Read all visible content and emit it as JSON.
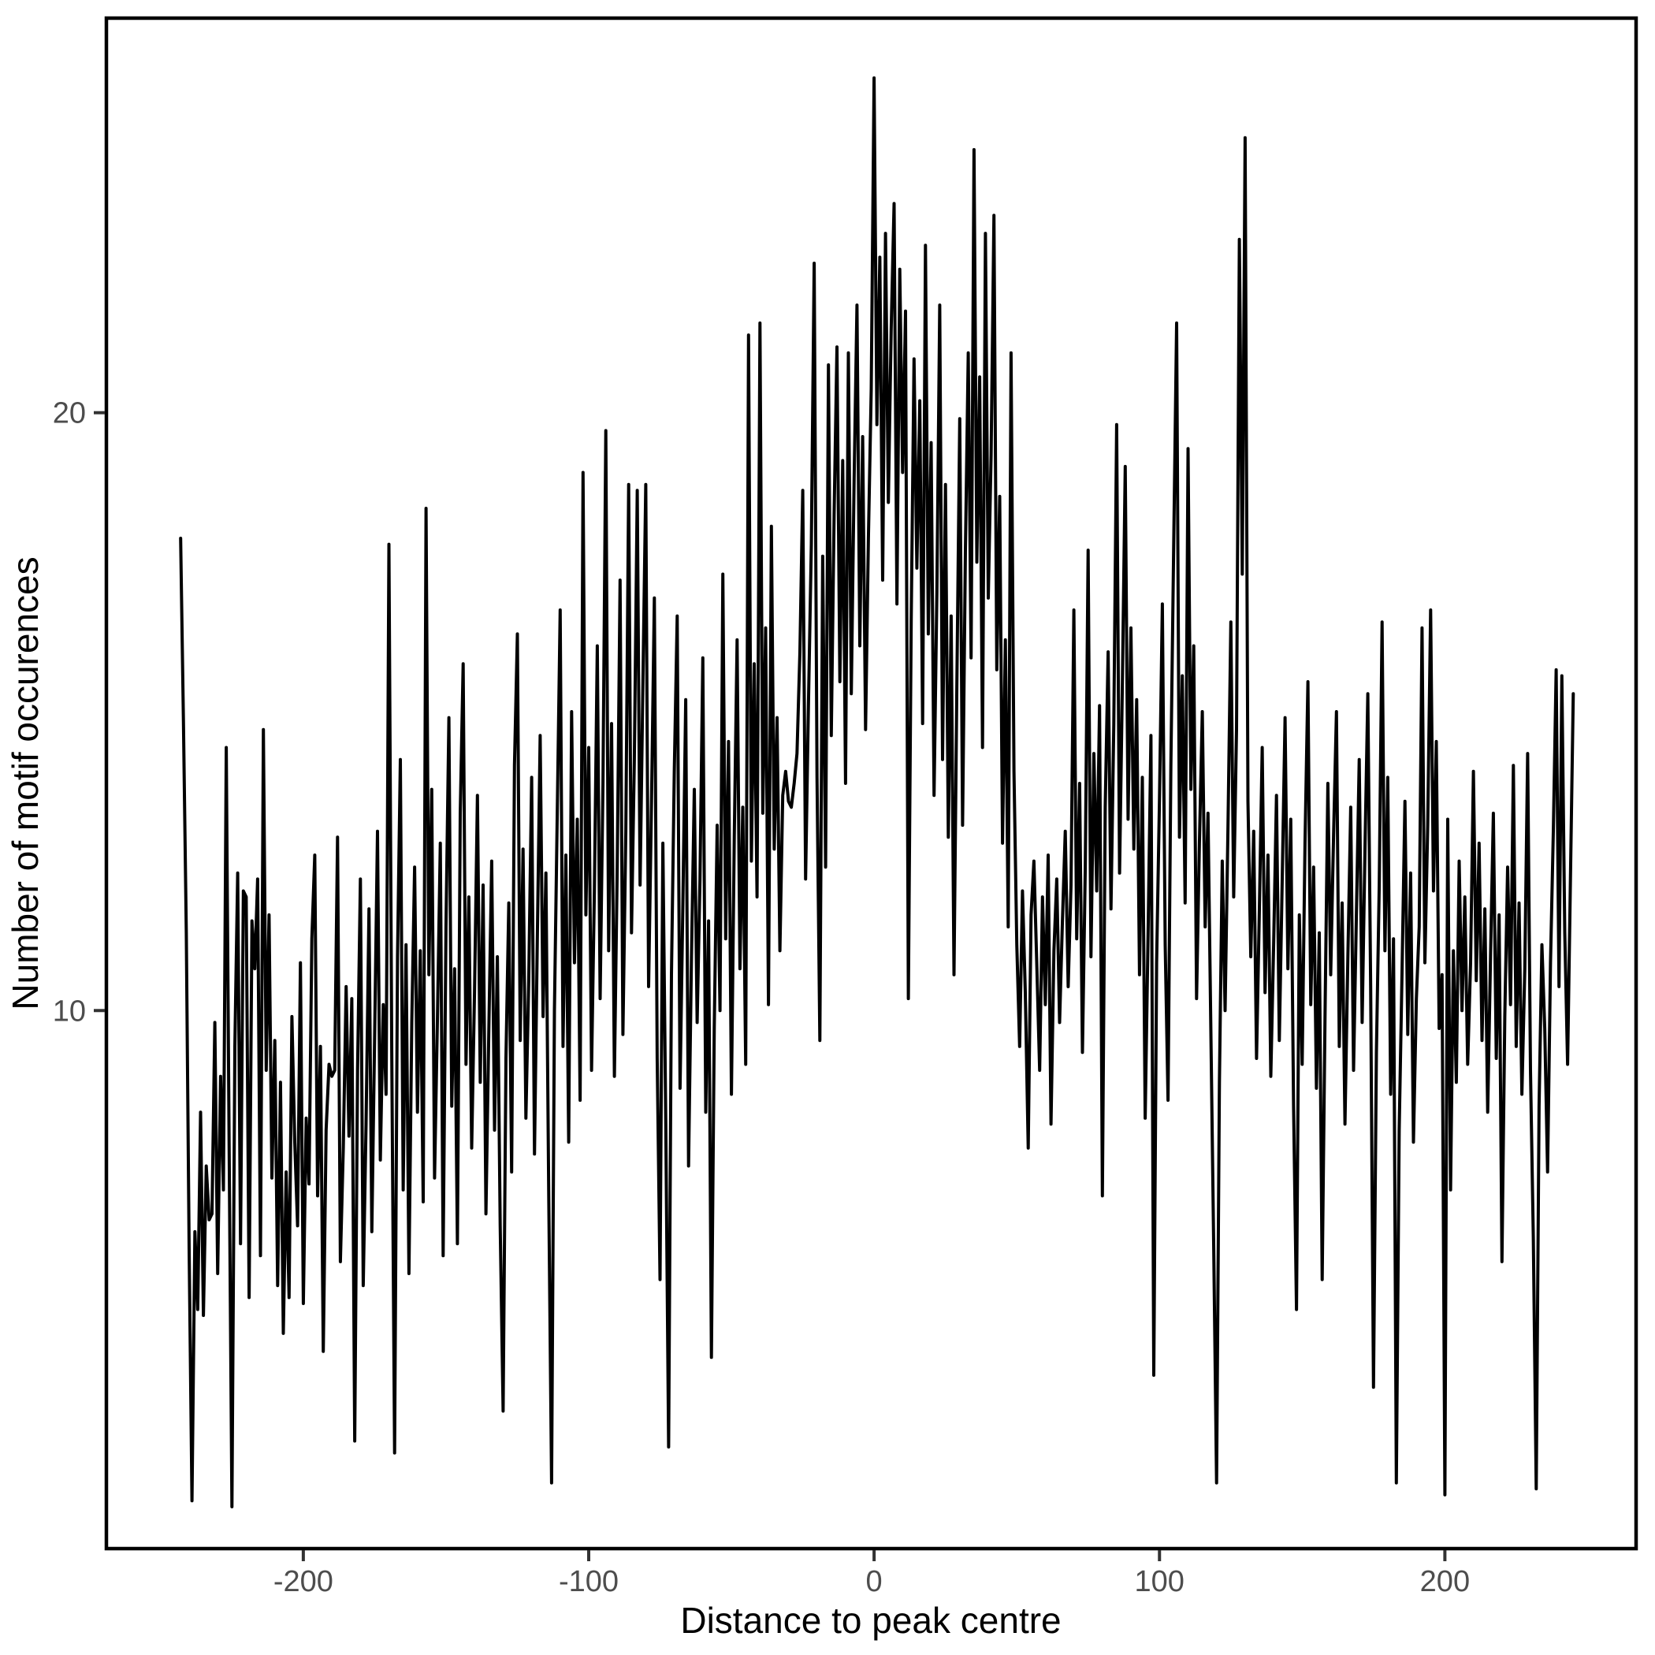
{
  "chart_data": {
    "type": "line",
    "title": "",
    "xlabel": "Distance to peak centre",
    "ylabel": "Number of motif occurences",
    "legend": "none",
    "grid": "off",
    "line_color": "#000000",
    "panel_border_color": "#000000",
    "tick_label_color": "#4d4d4d",
    "axis_title_color": "#000000",
    "background_color": "#ffffff",
    "xlim": [
      -269,
      267
    ],
    "ylim": [
      1.0,
      26.6
    ],
    "x_ticks": [
      -200,
      -100,
      0,
      100,
      200
    ],
    "y_ticks": [
      10,
      20
    ],
    "x_start": -243,
    "x_step": 1,
    "values": [
      17.9,
      14.8,
      11.3,
      6.0,
      1.8,
      6.3,
      5.0,
      8.3,
      4.9,
      7.4,
      6.5,
      6.6,
      9.8,
      5.6,
      8.9,
      7.0,
      14.4,
      7.8,
      1.7,
      9.4,
      12.3,
      6.1,
      12.0,
      11.9,
      5.2,
      11.5,
      10.7,
      12.2,
      5.9,
      14.7,
      9.0,
      11.6,
      7.2,
      9.5,
      5.4,
      8.8,
      4.6,
      7.3,
      5.2,
      9.9,
      7.8,
      6.4,
      10.8,
      5.1,
      8.2,
      7.1,
      11.2,
      12.6,
      6.9,
      9.4,
      4.3,
      8.0,
      9.1,
      8.9,
      9.0,
      12.9,
      5.8,
      7.7,
      10.4,
      7.9,
      10.2,
      2.8,
      9.0,
      12.2,
      5.4,
      8.1,
      11.7,
      6.3,
      9.6,
      13.0,
      7.5,
      10.1,
      8.6,
      17.8,
      9.3,
      2.6,
      10.9,
      14.2,
      7.0,
      11.1,
      5.6,
      9.8,
      12.4,
      8.3,
      11.0,
      6.8,
      18.4,
      10.6,
      13.7,
      7.2,
      9.9,
      12.8,
      5.9,
      11.4,
      14.9,
      8.4,
      10.7,
      6.1,
      13.3,
      15.8,
      9.1,
      11.9,
      7.7,
      10.3,
      13.6,
      8.8,
      12.1,
      6.6,
      9.7,
      12.5,
      8.0,
      10.9,
      6.4,
      3.3,
      9.2,
      11.8,
      7.3,
      14.1,
      16.3,
      9.5,
      12.7,
      8.2,
      10.5,
      13.9,
      7.6,
      11.2,
      14.6,
      9.9,
      12.3,
      6.9,
      2.1,
      10.0,
      13.4,
      16.7,
      9.4,
      12.6,
      7.8,
      15.0,
      10.8,
      13.2,
      8.5,
      19.0,
      11.6,
      14.4,
      9.0,
      12.0,
      16.1,
      10.2,
      13.8,
      19.7,
      11.0,
      14.8,
      8.9,
      12.4,
      17.2,
      9.6,
      13.0,
      18.8,
      11.3,
      14.2,
      18.7,
      12.1,
      15.5,
      18.8,
      10.4,
      13.5,
      16.9,
      9.2,
      5.5,
      12.8,
      8.1,
      2.7,
      10.6,
      14.0,
      16.6,
      8.7,
      11.8,
      15.2,
      7.4,
      10.9,
      13.7,
      9.8,
      12.2,
      15.9,
      8.3,
      11.5,
      4.2,
      9.7,
      13.1,
      10.0,
      17.3,
      11.2,
      14.5,
      8.6,
      12.9,
      16.2,
      10.7,
      13.4,
      9.1,
      21.3,
      12.5,
      15.8,
      11.9,
      21.5,
      13.3,
      16.4,
      10.1,
      18.1,
      12.7,
      14.9,
      11.0,
      13.6,
      14.0,
      13.5,
      13.4,
      13.8,
      14.3,
      16.0,
      18.7,
      12.2,
      15.1,
      17.8,
      22.5,
      13.9,
      9.5,
      17.6,
      12.4,
      20.8,
      14.6,
      18.3,
      21.1,
      15.5,
      19.2,
      13.8,
      21.0,
      15.3,
      18.9,
      21.8,
      16.1,
      19.6,
      14.7,
      17.9,
      20.4,
      25.6,
      19.8,
      22.6,
      17.2,
      23.0,
      18.5,
      21.4,
      23.5,
      16.8,
      22.4,
      19.0,
      21.7,
      10.2,
      16.5,
      20.9,
      17.4,
      20.2,
      14.8,
      22.8,
      16.3,
      19.5,
      13.6,
      17.0,
      21.8,
      14.2,
      18.8,
      12.9,
      16.6,
      10.6,
      15.4,
      19.9,
      13.1,
      17.7,
      21.0,
      15.9,
      24.4,
      17.5,
      20.6,
      14.4,
      23.0,
      16.9,
      19.3,
      23.3,
      15.7,
      18.6,
      12.8,
      16.2,
      11.4,
      21.0,
      14.0,
      11.1,
      9.4,
      12.0,
      10.3,
      7.7,
      11.6,
      12.5,
      10.8,
      9.0,
      11.9,
      10.1,
      12.6,
      8.1,
      11.0,
      12.2,
      9.8,
      11.5,
      13.0,
      10.4,
      12.1,
      16.7,
      11.2,
      13.8,
      9.3,
      12.4,
      17.7,
      10.9,
      14.3,
      12.0,
      15.1,
      6.9,
      13.4,
      16.0,
      11.7,
      14.8,
      19.8,
      12.3,
      15.5,
      19.1,
      13.2,
      16.4,
      12.7,
      15.2,
      10.6,
      13.9,
      8.2,
      11.3,
      14.6,
      3.9,
      10.8,
      13.5,
      16.8,
      11.1,
      8.5,
      14.1,
      17.9,
      21.5,
      12.9,
      15.6,
      11.8,
      19.4,
      13.7,
      16.1,
      10.2,
      12.8,
      15.0,
      11.4,
      13.3,
      9.7,
      6.0,
      2.1,
      8.8,
      12.5,
      10.0,
      13.1,
      16.5,
      11.9,
      14.7,
      22.9,
      17.3,
      24.6,
      13.5,
      10.9,
      13.0,
      9.2,
      11.7,
      14.4,
      10.3,
      12.6,
      8.9,
      11.1,
      13.6,
      9.5,
      12.2,
      14.9,
      10.7,
      13.2,
      8.4,
      5.0,
      11.6,
      9.1,
      12.8,
      15.5,
      10.1,
      12.4,
      8.7,
      11.3,
      5.5,
      9.9,
      13.8,
      10.6,
      12.9,
      15.0,
      9.4,
      11.8,
      8.1,
      10.9,
      13.4,
      9.0,
      11.6,
      14.2,
      9.8,
      12.7,
      15.3,
      10.4,
      3.7,
      9.3,
      12.1,
      16.5,
      11.0,
      13.9,
      8.6,
      11.2,
      2.1,
      8.0,
      10.7,
      13.5,
      9.6,
      12.3,
      7.8,
      10.2,
      11.4,
      16.4,
      10.8,
      13.1,
      16.7,
      12.0,
      14.5,
      9.7,
      10.6,
      1.9,
      13.2,
      7.0,
      11.0,
      8.8,
      12.5,
      10.0,
      11.9,
      9.1,
      10.8,
      14.0,
      10.5,
      12.8,
      9.5,
      11.7,
      8.3,
      10.9,
      13.3,
      9.2,
      11.6,
      5.8,
      9.9,
      12.4,
      10.1,
      14.1,
      9.4,
      11.8,
      8.6,
      10.7,
      14.3,
      9.0,
      6.2,
      2.0,
      8.4,
      11.1,
      9.7,
      7.3,
      10.8,
      13.0,
      15.7,
      10.4,
      15.6,
      11.3,
      9.1,
      12.2,
      15.3
    ]
  }
}
